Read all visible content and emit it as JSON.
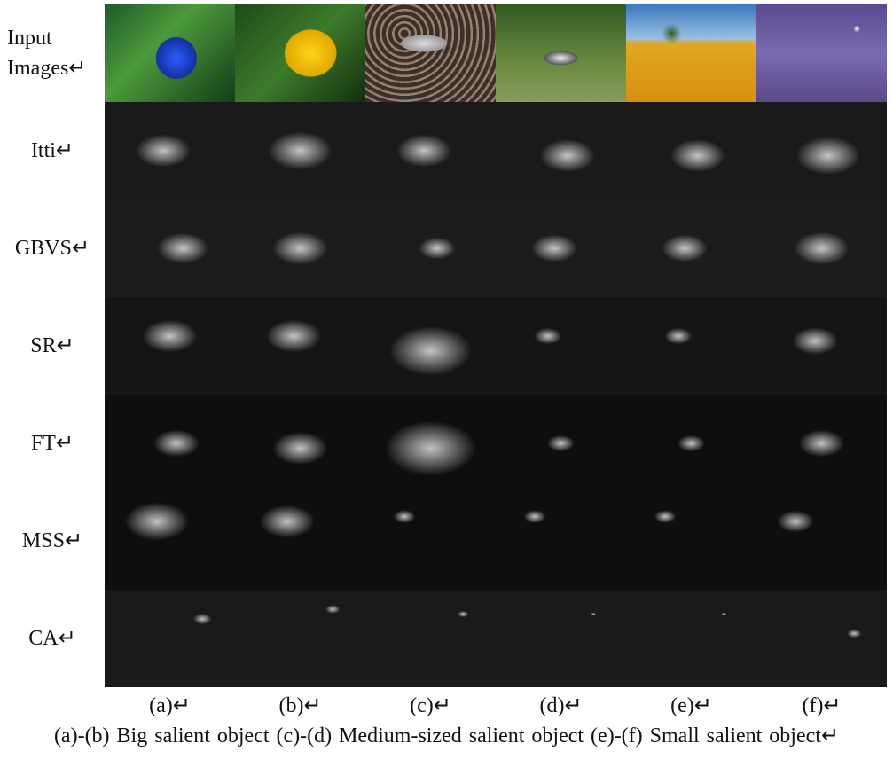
{
  "row_labels": [
    "Input Images↵",
    "Itti↵",
    "GBVS↵",
    "SR↵",
    "FT↵",
    "MSS↵",
    "CA↵"
  ],
  "column_labels": [
    "(a)↵",
    "(b)↵",
    "(c)↵",
    "(d)↵",
    "(e)↵",
    "(f)↵"
  ],
  "caption": "(a)-(b) Big salient object (c)-(d) Medium-sized salient object (e)-(f) Small salient object↵"
}
